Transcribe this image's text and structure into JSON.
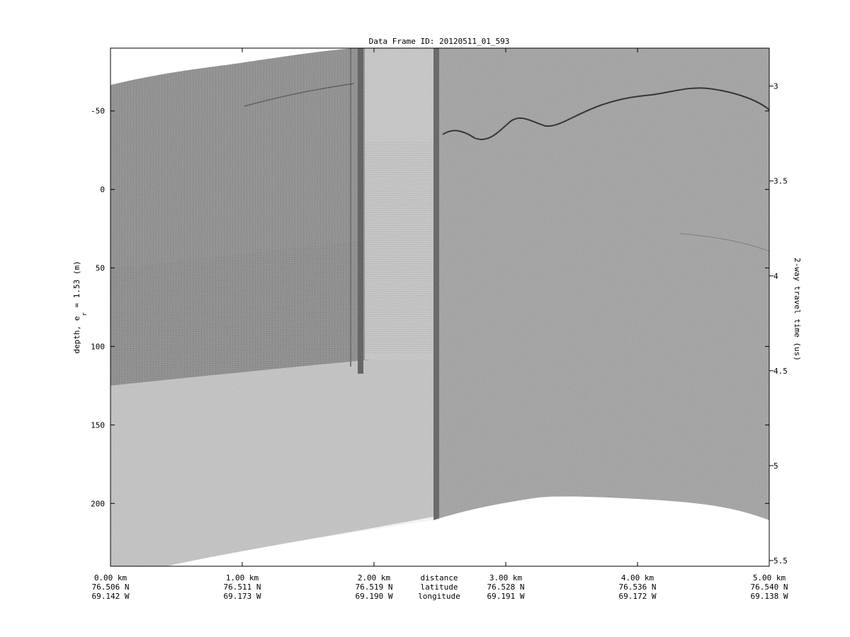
{
  "chart_data": {
    "type": "heatmap",
    "title": "Data Frame ID: 20120511_01_593",
    "ylabel_left": "depth, e",
    "ylabel_left_sub": "r",
    "ylabel_left_suffix": " = 1.53 (m)",
    "ylabel_right": "2-way travel time (us)",
    "colormap": "gray",
    "grid": false,
    "left_axis": {
      "ticks": [
        -50,
        0,
        50,
        100,
        150,
        200
      ],
      "range": [
        -90,
        240
      ]
    },
    "right_axis": {
      "ticks": [
        3,
        3.5,
        4,
        4.5,
        5,
        5.5
      ],
      "range": [
        2.8,
        5.53
      ]
    },
    "x_axis": {
      "range_km": [
        0,
        5
      ],
      "row_labels": [
        "distance",
        "latitude",
        "longitude"
      ],
      "ticks": [
        {
          "distance_km": 0,
          "distance": "0.00 km",
          "latitude": "76.506 N",
          "longitude": "69.142 W"
        },
        {
          "distance_km": 1,
          "distance": "1.00 km",
          "latitude": "76.511 N",
          "longitude": "69.173 W"
        },
        {
          "distance_km": 2,
          "distance": "2.00 km",
          "latitude": "76.519 N",
          "longitude": "69.190 W"
        },
        {
          "distance_km": 3,
          "distance": "3.00 km",
          "latitude": "76.528 N",
          "longitude": "69.191 W"
        },
        {
          "distance_km": 4,
          "distance": "4.00 km",
          "latitude": "76.536 N",
          "longitude": "69.172 W"
        },
        {
          "distance_km": 5,
          "distance": "5.00 km",
          "latitude": "76.540 N",
          "longitude": "69.138 W"
        }
      ]
    },
    "colors": {
      "background": "#ffffff",
      "ice_dark": "#8c8c8c",
      "ice_light": "#c4c4c4",
      "right_section": "#a0a0a0",
      "reflector": "#1a1a1a"
    }
  }
}
